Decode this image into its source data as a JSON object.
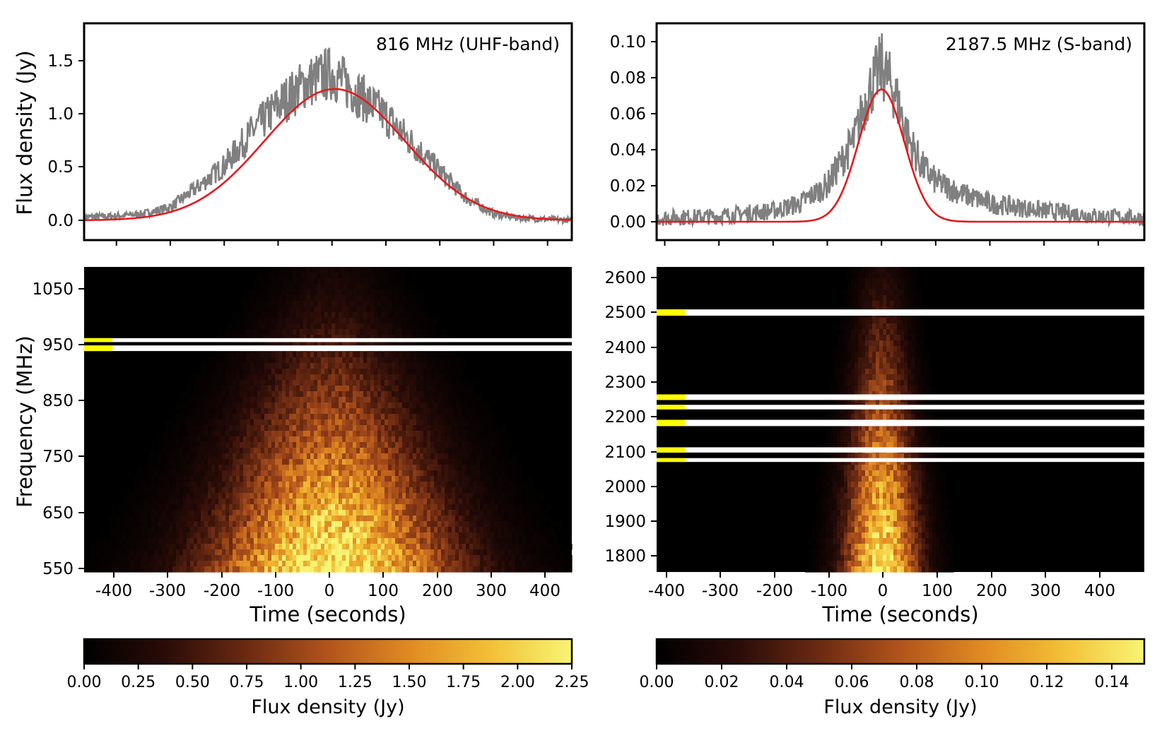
{
  "chart_data": [
    {
      "type": "line",
      "id": "uhf-profile",
      "annotation": "816 MHz (UHF-band)",
      "ylabel": "Flux density (Jy)",
      "xlim": [
        -460,
        445
      ],
      "ylim": [
        -0.18,
        1.8
      ],
      "yticks": [
        0.0,
        0.5,
        1.0,
        1.5
      ],
      "ytick_labels": [
        "0.0",
        "0.5",
        "1.0",
        "1.5"
      ],
      "xticks": [
        -400,
        -300,
        -200,
        -100,
        0,
        100,
        200,
        300,
        400
      ],
      "colors": {
        "data": "#808080",
        "fit": "#e41a1c"
      },
      "series": [
        {
          "kind": "data",
          "x": [
            -460,
            -400,
            -350,
            -300,
            -250,
            -200,
            -150,
            -100,
            -50,
            0,
            50,
            100,
            150,
            200,
            250,
            300,
            350,
            400,
            445
          ],
          "y": [
            0.03,
            0.04,
            0.06,
            0.12,
            0.3,
            0.5,
            0.8,
            1.05,
            1.25,
            1.35,
            1.15,
            0.95,
            0.7,
            0.45,
            0.2,
            0.06,
            0.02,
            0.01,
            0.0
          ]
        },
        {
          "kind": "fit",
          "model": "gaussian",
          "amplitude": 1.2,
          "center": 5,
          "sigma": 130
        }
      ]
    },
    {
      "type": "line",
      "id": "sband-profile",
      "annotation": "2187.5 MHz (S-band)",
      "xlim": [
        -415,
        485
      ],
      "ylim": [
        -0.01,
        0.108
      ],
      "yticks": [
        0.0,
        0.02,
        0.04,
        0.06,
        0.08,
        0.1
      ],
      "ytick_labels": [
        "0.00",
        "0.02",
        "0.04",
        "0.06",
        "0.08",
        "0.10"
      ],
      "xticks": [
        -400,
        -300,
        -200,
        -100,
        0,
        100,
        200,
        300,
        400
      ],
      "colors": {
        "data": "#808080",
        "fit": "#e41a1c"
      },
      "series": [
        {
          "kind": "data",
          "x": [
            -415,
            -300,
            -200,
            -150,
            -100,
            -50,
            -25,
            0,
            25,
            50,
            75,
            100,
            150,
            200,
            300,
            400,
            485
          ],
          "y": [
            0.002,
            0.003,
            0.006,
            0.01,
            0.02,
            0.045,
            0.07,
            0.085,
            0.07,
            0.045,
            0.03,
            0.022,
            0.015,
            0.01,
            0.006,
            0.003,
            0.002
          ]
        },
        {
          "kind": "fit",
          "model": "gaussian",
          "amplitude": 0.072,
          "center": 0,
          "sigma": 42
        }
      ]
    },
    {
      "type": "heatmap",
      "id": "uhf-dynamic-spectrum",
      "xlabel": "Time (seconds)",
      "ylabel": "Frequency (MHz)",
      "xlim": [
        -460,
        445
      ],
      "ylim": [
        544,
        1088
      ],
      "xticks": [
        -400,
        -300,
        -200,
        -100,
        0,
        100,
        200,
        300,
        400
      ],
      "xtick_labels": [
        "-400",
        "-300",
        "-200",
        "-100",
        "0",
        "100",
        "200",
        "300",
        "400"
      ],
      "yticks": [
        550,
        650,
        750,
        850,
        950,
        1050
      ],
      "ytick_labels": [
        "550",
        "650",
        "750",
        "850",
        "950",
        "1050"
      ],
      "flagged_mhz": [
        [
          954,
          961
        ],
        [
          938,
          948
        ]
      ],
      "flag_colors": {
        "band": "#ffffff",
        "marker": "#ffff00"
      },
      "colorbar": {
        "label": "Flux density (Jy)",
        "range": [
          0,
          2.25
        ],
        "ticks": [
          "0.00",
          "0.25",
          "0.50",
          "0.75",
          "1.00",
          "1.25",
          "1.50",
          "1.75",
          "2.00",
          "2.25"
        ],
        "colormap": [
          "#000000",
          "#2a0c08",
          "#6b2a12",
          "#b2541c",
          "#e08a22",
          "#f2c036",
          "#f8f474"
        ]
      }
    },
    {
      "type": "heatmap",
      "id": "sband-dynamic-spectrum",
      "xlabel": "Time (seconds)",
      "xlim": [
        -415,
        485
      ],
      "ylim": [
        1752,
        2628
      ],
      "xticks": [
        -400,
        -300,
        -200,
        -100,
        0,
        100,
        200,
        300,
        400
      ],
      "xtick_labels": [
        "-400",
        "-300",
        "-200",
        "-100",
        "0",
        "100",
        "200",
        "300",
        "400"
      ],
      "yticks": [
        1800,
        1900,
        2000,
        2100,
        2200,
        2300,
        2400,
        2500,
        2600
      ],
      "ytick_labels": [
        "1800",
        "1900",
        "2000",
        "2100",
        "2200",
        "2300",
        "2400",
        "2500",
        "2600"
      ],
      "flagged_mhz": [
        [
          2488,
          2506
        ],
        [
          2246,
          2262
        ],
        [
          2219,
          2232
        ],
        [
          2171,
          2189
        ],
        [
          2095,
          2110
        ],
        [
          2068,
          2079
        ]
      ],
      "flag_colors": {
        "band": "#ffffff",
        "marker": "#ffff00"
      },
      "colorbar": {
        "label": "Flux density (Jy)",
        "range": [
          0,
          0.15
        ],
        "ticks": [
          "0.00",
          "0.02",
          "0.04",
          "0.06",
          "0.08",
          "0.10",
          "0.12",
          "0.14"
        ],
        "colormap": [
          "#000000",
          "#2a0c08",
          "#6b2a12",
          "#b2541c",
          "#e08a22",
          "#f2c036",
          "#f8f474"
        ]
      }
    }
  ]
}
